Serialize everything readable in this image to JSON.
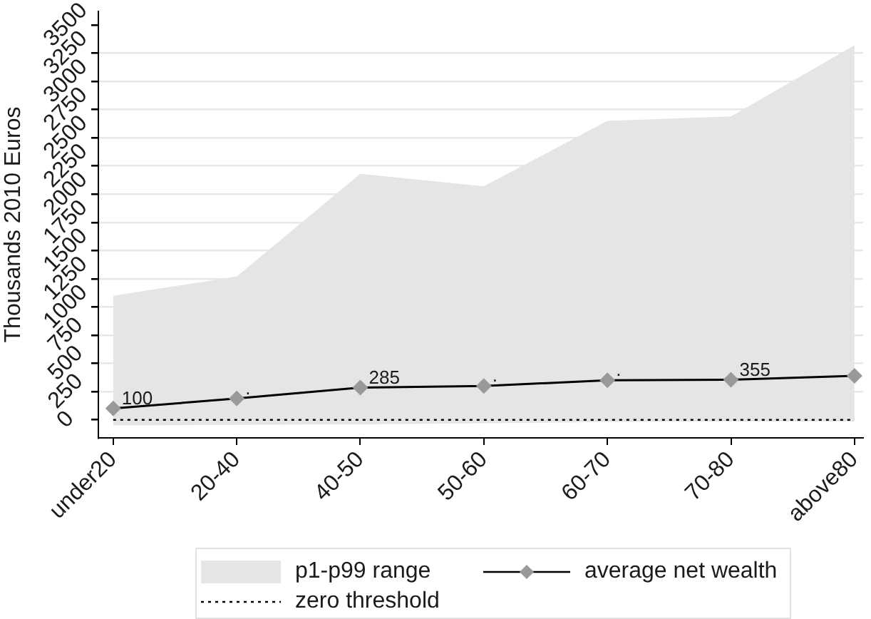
{
  "chart_data": {
    "type": "line",
    "ylabel": "Thousands 2010 Euros",
    "categories": [
      "under20",
      "20-40",
      "40-50",
      "50-60",
      "60-70",
      "70-80",
      "above80"
    ],
    "series": [
      {
        "name": "p1-p99 range",
        "type": "area",
        "color": "#e5e5e5",
        "values": [
          null,
          null,
          null,
          null,
          null,
          null,
          null
        ],
        "lower": [
          -50,
          -45,
          -40,
          -30,
          -20,
          -15,
          -15
        ],
        "upper": [
          1100,
          1270,
          2180,
          2070,
          2650,
          2690,
          3320
        ]
      },
      {
        "name": "average net wealth",
        "color": "#000000",
        "colors": [
          "#999999",
          "#999999",
          "#999999",
          "#999999",
          "#999999",
          "#999999",
          "#999999"
        ],
        "marker": "diamond",
        "line_style": "solid",
        "values": [
          100,
          190,
          285,
          300,
          350,
          355,
          390
        ],
        "value_labels": [
          "100",
          ".",
          "285",
          ".",
          ".",
          "355",
          null
        ]
      },
      {
        "name": "zero threshold",
        "color": "#000000",
        "marker": "none",
        "line_style": "dotted",
        "values": [
          0,
          0,
          0,
          0,
          0,
          0,
          0
        ]
      }
    ],
    "ylim": [
      -160,
      3620
    ],
    "yticks": [
      0,
      250,
      500,
      750,
      1000,
      1250,
      1500,
      1750,
      2000,
      2250,
      2500,
      2750,
      3000,
      3250,
      3500
    ],
    "grid": "y",
    "legend": "bottom"
  }
}
